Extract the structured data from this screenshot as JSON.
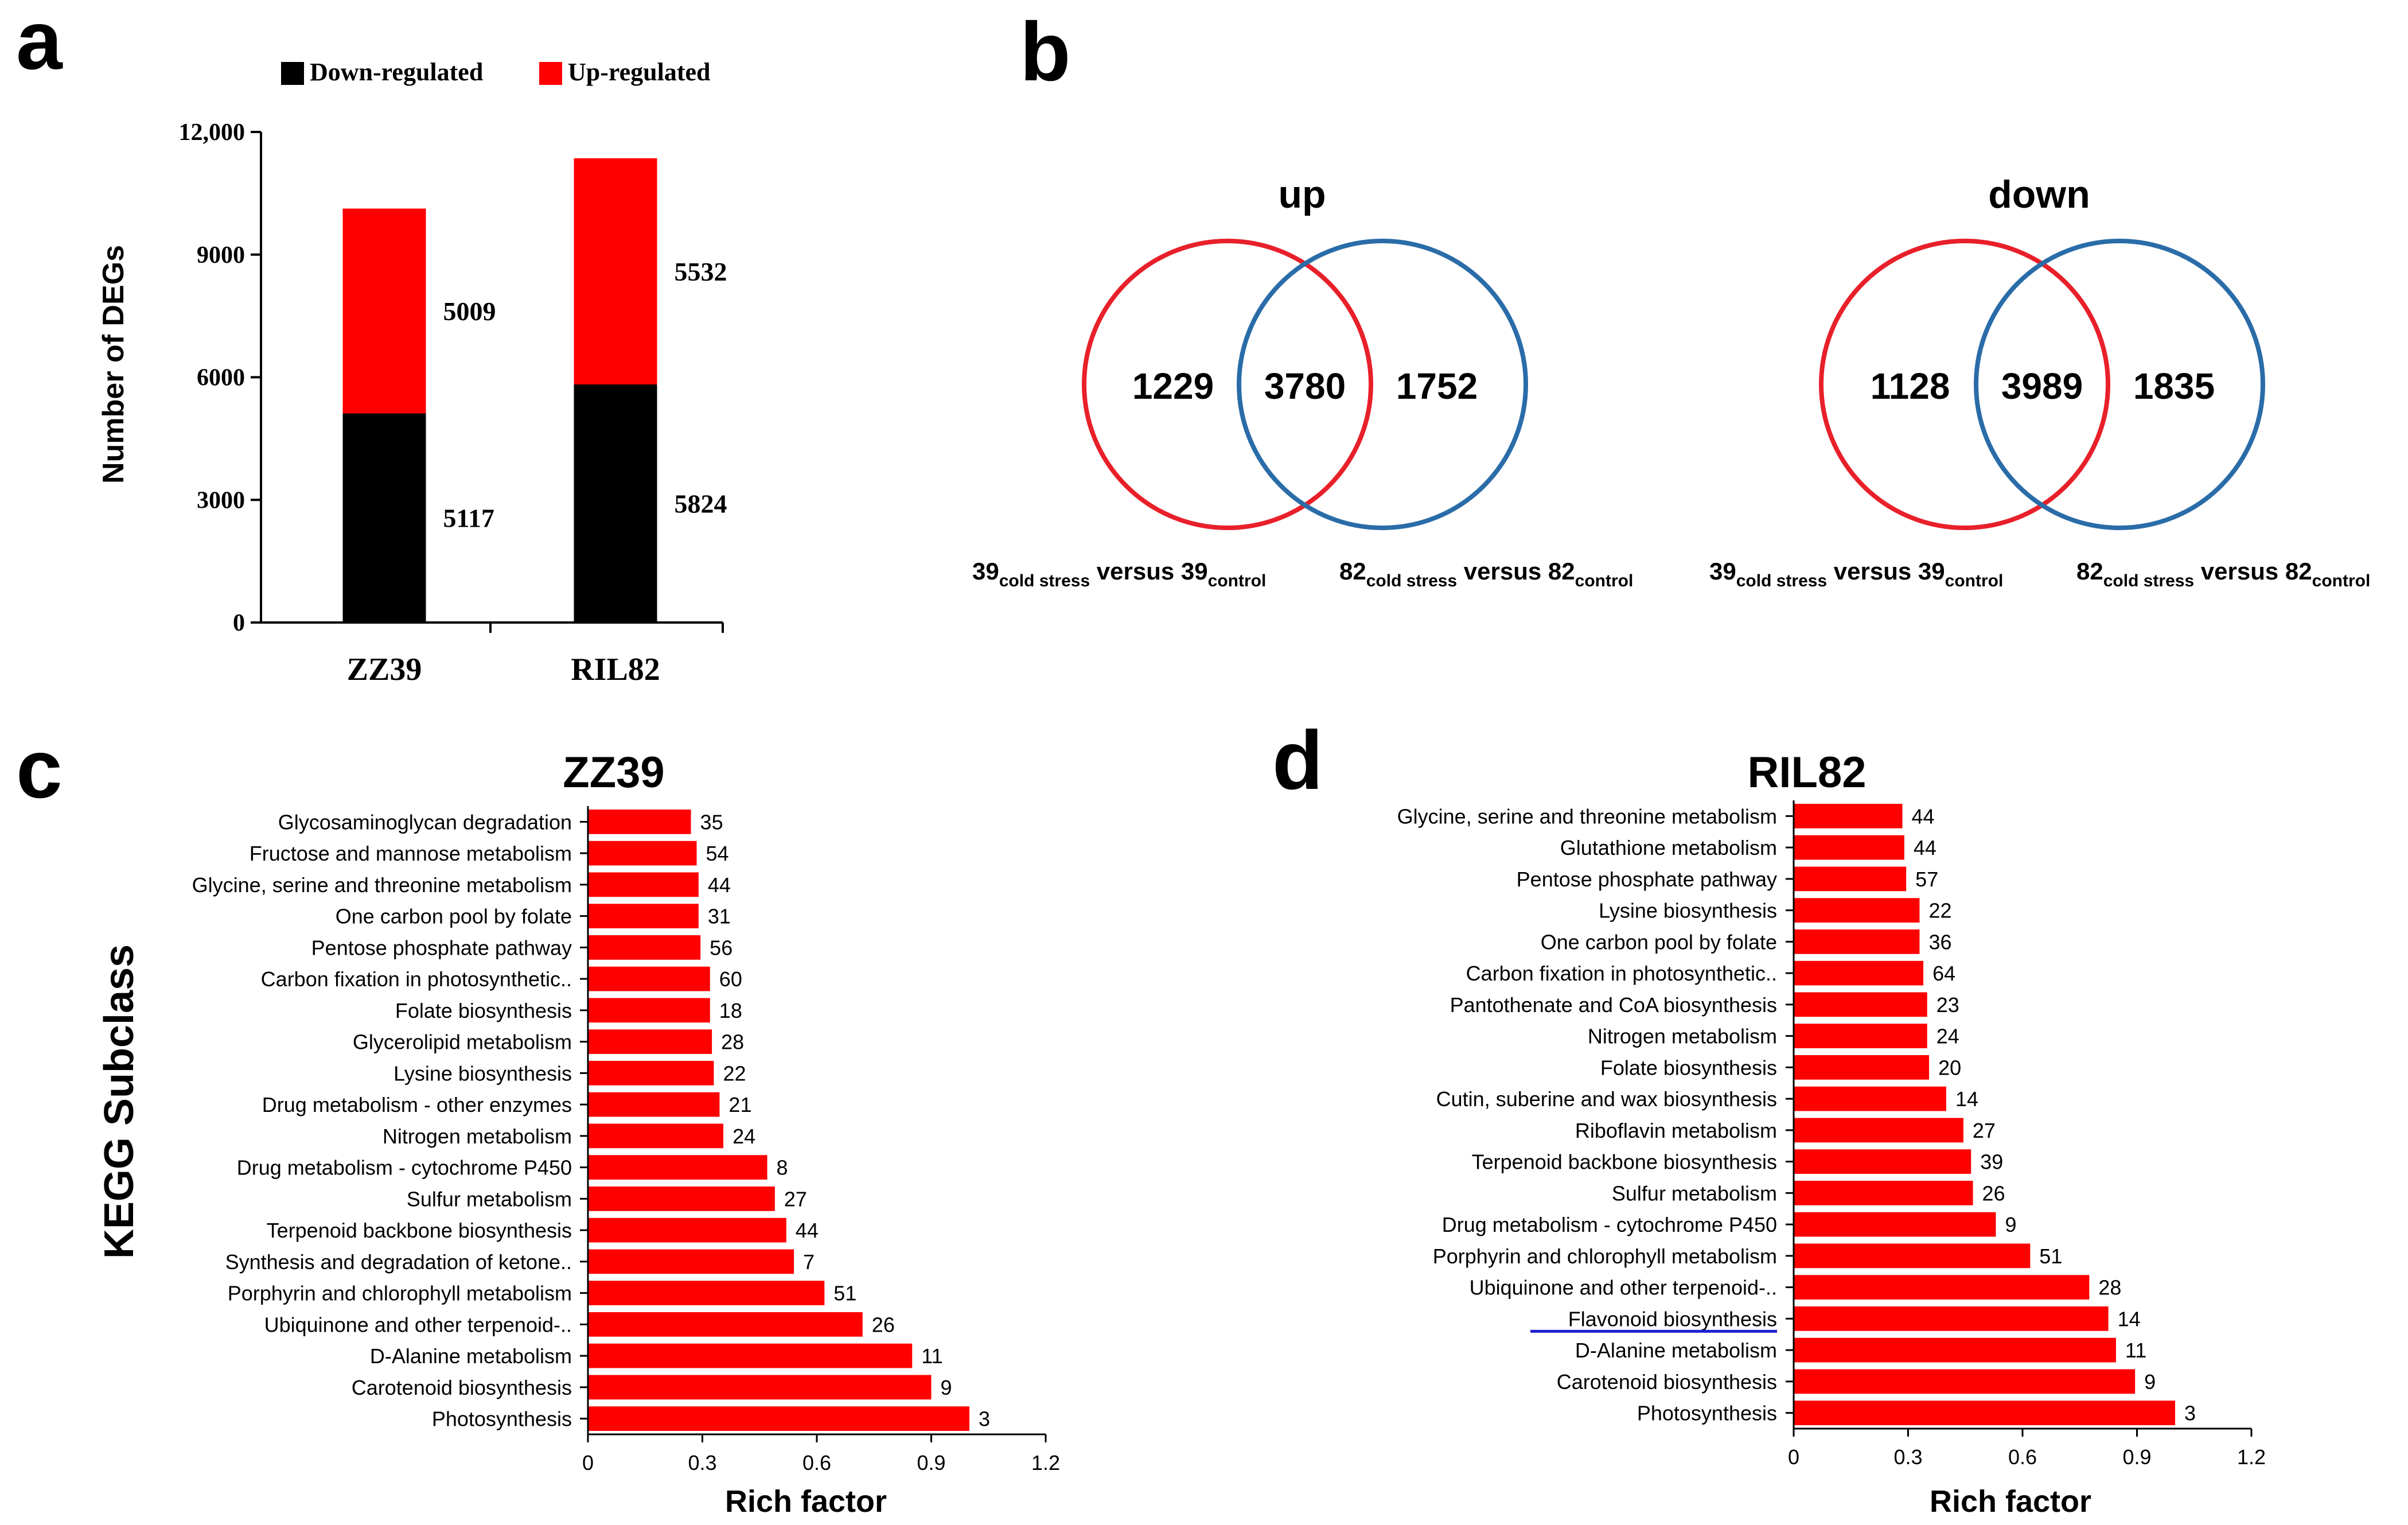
{
  "panel_labels": {
    "a": "a",
    "b": "b",
    "c": "c",
    "d": "d"
  },
  "chart_data": [
    {
      "panel": "a",
      "type": "bar",
      "stacked": true,
      "categories": [
        "ZZ39",
        "RIL82"
      ],
      "series": [
        {
          "name": "Down-regulated",
          "values": [
            5117,
            5824
          ],
          "color": "#000000"
        },
        {
          "name": "Up-regulated",
          "values": [
            5009,
            5532
          ],
          "color": "#ff0000"
        }
      ],
      "ylabel": "Number of DEGs",
      "ylim": [
        0,
        12000
      ],
      "yticks": [
        0,
        3000,
        6000,
        9000,
        12000
      ],
      "ytick_labels": [
        "0",
        "3000",
        "6000",
        "9000",
        "12,000"
      ],
      "legend_position": "top"
    },
    {
      "panel": "b",
      "type": "venn",
      "diagrams": [
        {
          "title": "up",
          "left_only": 1229,
          "both": 3780,
          "right_only": 1752,
          "left_set": {
            "main": "39",
            "sub1": "cold stress",
            "mid": " versus 39",
            "sub2": "control"
          },
          "right_set": {
            "main": "82",
            "sub1": "cold stress",
            "mid": " versus 82",
            "sub2": "control"
          }
        },
        {
          "title": "down",
          "left_only": 1128,
          "both": 3989,
          "right_only": 1835,
          "left_set": {
            "main": "39",
            "sub1": "cold stress",
            "mid": " versus 39",
            "sub2": "control"
          },
          "right_set": {
            "main": "82",
            "sub1": "cold stress",
            "mid": " versus 82",
            "sub2": "control"
          }
        }
      ],
      "colors": {
        "left": "#e8202a",
        "right": "#2a6ca8"
      }
    },
    {
      "panel": "c",
      "type": "bar",
      "orientation": "horizontal",
      "title": "ZZ39",
      "ylabel": "KEGG Subclass",
      "xlabel": "Rich factor",
      "xlim": [
        0,
        1.2
      ],
      "xticks": [
        "0",
        "0.3",
        "0.6",
        "0.9",
        "1.2"
      ],
      "color": "#ff0000",
      "categories": [
        "Glycosaminoglycan degradation",
        "Fructose and mannose metabolism",
        "Glycine, serine and threonine metabolism",
        "One carbon pool by folate",
        "Pentose phosphate pathway",
        "Carbon fixation in photosynthetic..",
        "Folate biosynthesis",
        "Glycerolipid metabolism",
        "Lysine biosynthesis",
        "Drug metabolism - other enzymes",
        "Nitrogen metabolism",
        "Drug metabolism - cytochrome P450",
        "Sulfur metabolism",
        "Terpenoid backbone biosynthesis",
        "Synthesis and degradation of ketone..",
        "Porphyrin and chlorophyll metabolism",
        "Ubiquinone and other terpenoid-..",
        "D-Alanine metabolism",
        "Carotenoid biosynthesis",
        "Photosynthesis"
      ],
      "values": [
        0.27,
        0.285,
        0.29,
        0.29,
        0.295,
        0.32,
        0.32,
        0.325,
        0.33,
        0.345,
        0.355,
        0.47,
        0.49,
        0.52,
        0.54,
        0.62,
        0.72,
        0.85,
        0.9,
        1.0
      ],
      "gene_counts": [
        "35",
        "54",
        "44",
        "31",
        "56",
        "60",
        "18",
        "28",
        "22",
        "21",
        "24",
        "8",
        "27",
        "44",
        "7",
        "51",
        "26",
        "11",
        "9",
        "3"
      ]
    },
    {
      "panel": "d",
      "type": "bar",
      "orientation": "horizontal",
      "title": "RIL82",
      "xlabel": "Rich factor",
      "xlim": [
        0,
        1.2
      ],
      "xticks": [
        "0",
        "0.3",
        "0.6",
        "0.9",
        "1.2"
      ],
      "color": "#ff0000",
      "highlight_category": "Flavonoid biosynthesis",
      "highlight_color": "#1f1fd0",
      "categories": [
        "Glycine, serine and threonine metabolism",
        "Glutathione metabolism",
        "Pentose phosphate pathway",
        "Lysine biosynthesis",
        "One carbon pool by folate",
        "Carbon fixation in photosynthetic..",
        "Pantothenate and CoA biosynthesis",
        "Nitrogen metabolism",
        "Folate biosynthesis",
        "Cutin, suberine and wax biosynthesis",
        "Riboflavin metabolism",
        "Terpenoid backbone biosynthesis",
        "Sulfur metabolism",
        "Drug metabolism - cytochrome P450",
        "Porphyrin and chlorophyll metabolism",
        "Ubiquinone and other terpenoid-..",
        "Flavonoid biosynthesis",
        "D-Alanine metabolism",
        "Carotenoid biosynthesis",
        "Photosynthesis"
      ],
      "values": [
        0.285,
        0.29,
        0.295,
        0.33,
        0.33,
        0.34,
        0.35,
        0.35,
        0.355,
        0.4,
        0.445,
        0.465,
        0.47,
        0.53,
        0.62,
        0.775,
        0.825,
        0.845,
        0.895,
        1.0
      ],
      "gene_counts": [
        "44",
        "44",
        "57",
        "22",
        "36",
        "64",
        "23",
        "24",
        "20",
        "14",
        "27",
        "39",
        "26",
        "9",
        "51",
        "28",
        "14",
        "11",
        "9",
        "3"
      ]
    }
  ]
}
